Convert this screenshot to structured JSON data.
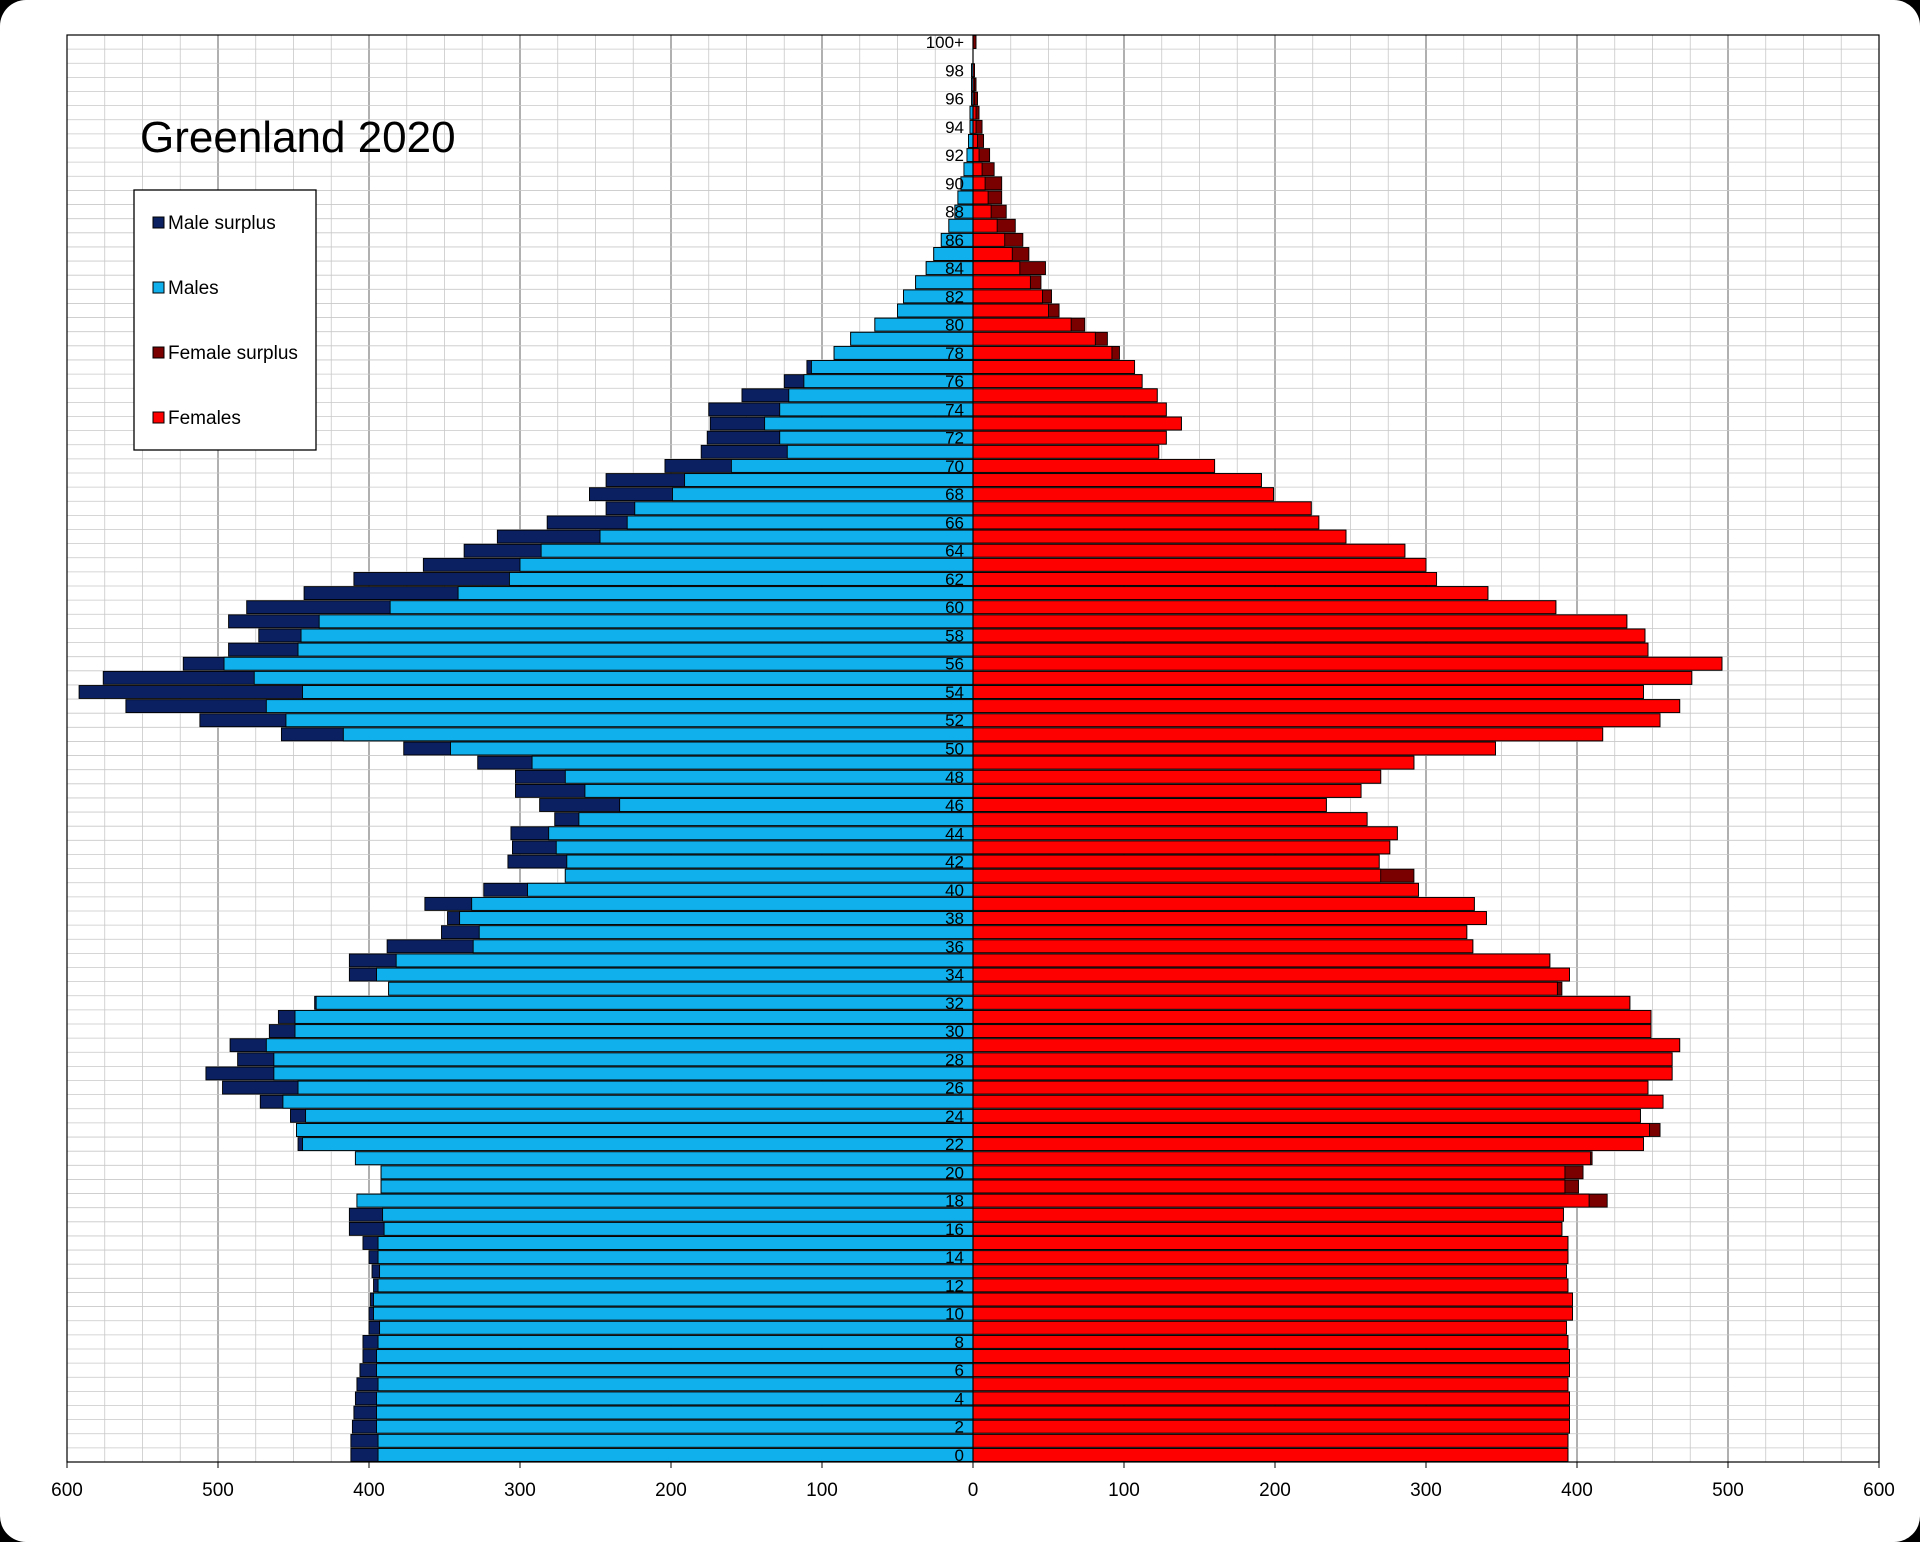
{
  "chart_data": {
    "type": "bar",
    "title": "Greenland 2020",
    "xlabel": "",
    "ylabel": "",
    "xlim": [
      -600,
      600
    ],
    "x_ticks": [
      -600,
      -500,
      -400,
      -300,
      -200,
      -100,
      0,
      100,
      200,
      300,
      400,
      500,
      600
    ],
    "x_tick_labels": [
      "600",
      "500",
      "400",
      "300",
      "200",
      "100",
      "0",
      "100",
      "200",
      "300",
      "400",
      "500",
      "600"
    ],
    "age_labels": {
      "0": "0",
      "2": "2",
      "4": "4",
      "6": "6",
      "8": "8",
      "10": "10",
      "12": "12",
      "14": "14",
      "16": "16",
      "18": "18",
      "20": "20",
      "22": "22",
      "24": "24",
      "26": "26",
      "28": "28",
      "30": "30",
      "32": "32",
      "34": "34",
      "36": "36",
      "38": "38",
      "40": "40",
      "42": "42",
      "44": "44",
      "46": "46",
      "48": "48",
      "50": "50",
      "52": "52",
      "54": "54",
      "56": "56",
      "58": "58",
      "60": "60",
      "62": "62",
      "64": "64",
      "66": "66",
      "68": "68",
      "70": "70",
      "72": "72",
      "74": "74",
      "76": "76",
      "78": "78",
      "80": "80",
      "82": "82",
      "84": "84",
      "86": "86",
      "88": "88",
      "90": "90",
      "92": "92",
      "94": "94",
      "96": "96",
      "98": "98",
      "100": "100+"
    },
    "grid": true,
    "legend_position": "top-left",
    "legend": [
      {
        "label": "Male surplus",
        "color": "#0a2060"
      },
      {
        "label": "Males",
        "color": "#10b0ec"
      },
      {
        "label": "Female surplus",
        "color": "#7a0000"
      },
      {
        "label": "Females",
        "color": "#ff0000"
      }
    ],
    "colors": {
      "male_surplus": "#0a2060",
      "males": "#10b0ec",
      "female_surplus": "#7a0000",
      "females": "#ff0000",
      "axis": "#000000",
      "grid_major": "#606060",
      "grid_minor": "#c8c8c8"
    },
    "ages": [
      0,
      1,
      2,
      3,
      4,
      5,
      6,
      7,
      8,
      9,
      10,
      11,
      12,
      13,
      14,
      15,
      16,
      17,
      18,
      19,
      20,
      21,
      22,
      23,
      24,
      25,
      26,
      27,
      28,
      29,
      30,
      31,
      32,
      33,
      34,
      35,
      36,
      37,
      38,
      39,
      40,
      41,
      42,
      43,
      44,
      45,
      46,
      47,
      48,
      49,
      50,
      51,
      52,
      53,
      54,
      55,
      56,
      57,
      58,
      59,
      60,
      61,
      62,
      63,
      64,
      65,
      66,
      67,
      68,
      69,
      70,
      71,
      72,
      73,
      74,
      75,
      76,
      77,
      78,
      79,
      80,
      81,
      82,
      83,
      84,
      85,
      86,
      87,
      88,
      89,
      90,
      91,
      92,
      93,
      94,
      95,
      96,
      97,
      98,
      99,
      100
    ],
    "series": [
      {
        "name": "Males",
        "values": [
          412,
          412,
          411,
          410,
          409,
          408,
          406,
          404,
          404,
          400,
          400,
          399,
          397,
          398,
          400,
          404,
          413,
          413,
          408,
          392,
          392,
          409,
          447,
          448,
          452,
          472,
          497,
          508,
          487,
          492,
          466,
          460,
          436,
          387,
          413,
          413,
          388,
          352,
          348,
          363,
          324,
          270,
          308,
          305,
          306,
          277,
          287,
          303,
          303,
          328,
          377,
          458,
          512,
          561,
          592,
          576,
          523,
          493,
          473,
          493,
          481,
          443,
          410,
          364,
          337,
          315,
          282,
          243,
          254,
          243,
          204,
          180,
          176,
          174,
          175,
          153,
          125,
          110,
          92,
          81,
          65,
          50,
          46,
          38,
          31,
          26,
          21,
          16,
          12,
          10,
          8,
          6,
          4,
          3,
          2,
          2,
          1,
          1,
          1,
          0,
          0
        ]
      },
      {
        "name": "Females",
        "values": [
          394,
          394,
          395,
          395,
          395,
          394,
          395,
          395,
          394,
          393,
          397,
          397,
          394,
          393,
          394,
          394,
          390,
          391,
          420,
          401,
          404,
          410,
          444,
          455,
          442,
          457,
          447,
          463,
          463,
          468,
          449,
          449,
          435,
          390,
          395,
          382,
          331,
          327,
          340,
          332,
          295,
          292,
          269,
          276,
          281,
          261,
          234,
          257,
          270,
          292,
          346,
          417,
          455,
          468,
          444,
          476,
          496,
          447,
          445,
          433,
          386,
          341,
          307,
          300,
          286,
          247,
          229,
          224,
          199,
          191,
          160,
          123,
          128,
          138,
          128,
          122,
          112,
          107,
          97,
          89,
          74,
          57,
          52,
          45,
          48,
          37,
          33,
          28,
          22,
          19,
          19,
          14,
          11,
          7,
          6,
          4,
          3,
          2,
          1,
          0,
          2
        ]
      }
    ]
  }
}
